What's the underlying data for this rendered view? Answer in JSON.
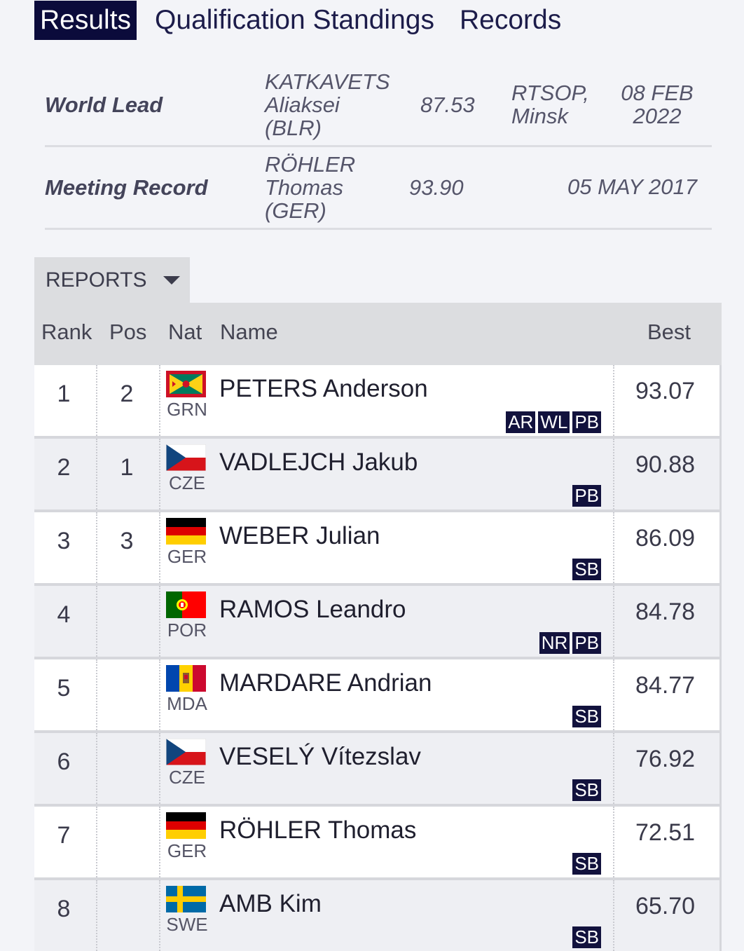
{
  "tabs": [
    {
      "label": "Results",
      "active": true
    },
    {
      "label": "Qualification Standings",
      "active": false
    },
    {
      "label": "Records",
      "active": false
    }
  ],
  "records": {
    "world_lead": {
      "label": "World Lead",
      "athlete_line1": "KATKAVETS",
      "athlete_line2": "Aliaksei",
      "athlete_line3": "(BLR)",
      "mark": "87.53",
      "venue_line1": "RTSOP,",
      "venue_line2": "Minsk",
      "date_line1": "08 FEB",
      "date_line2": "2022"
    },
    "meeting_record": {
      "label": "Meeting Record",
      "athlete_line1": "RÖHLER",
      "athlete_line2": "Thomas",
      "athlete_line3": "(GER)",
      "mark": "93.90",
      "date": "05 MAY 2017"
    }
  },
  "reports": {
    "label": "REPORTS"
  },
  "table": {
    "headers": {
      "rank": "Rank",
      "pos": "Pos",
      "nat": "Nat",
      "name": "Name",
      "best": "Best"
    },
    "rows": [
      {
        "rank": "1",
        "pos": "2",
        "nat": "GRN",
        "name": "PETERS Anderson",
        "best": "93.07",
        "badges": [
          "AR",
          "WL",
          "PB"
        ]
      },
      {
        "rank": "2",
        "pos": "1",
        "nat": "CZE",
        "name": "VADLEJCH Jakub",
        "best": "90.88",
        "badges": [
          "PB"
        ]
      },
      {
        "rank": "3",
        "pos": "3",
        "nat": "GER",
        "name": "WEBER Julian",
        "best": "86.09",
        "badges": [
          "SB"
        ]
      },
      {
        "rank": "4",
        "pos": "",
        "nat": "POR",
        "name": "RAMOS Leandro",
        "best": "84.78",
        "badges": [
          "NR",
          "PB"
        ]
      },
      {
        "rank": "5",
        "pos": "",
        "nat": "MDA",
        "name": "MARDARE Andrian",
        "best": "84.77",
        "badges": [
          "SB"
        ]
      },
      {
        "rank": "6",
        "pos": "",
        "nat": "CZE",
        "name": "VESELÝ Vítezslav",
        "best": "76.92",
        "badges": [
          "SB"
        ]
      },
      {
        "rank": "7",
        "pos": "",
        "nat": "GER",
        "name": "RÖHLER Thomas",
        "best": "72.51",
        "badges": [
          "SB"
        ]
      },
      {
        "rank": "8",
        "pos": "",
        "nat": "SWE",
        "name": "AMB Kim",
        "best": "65.70",
        "badges": [
          "SB"
        ]
      }
    ]
  }
}
